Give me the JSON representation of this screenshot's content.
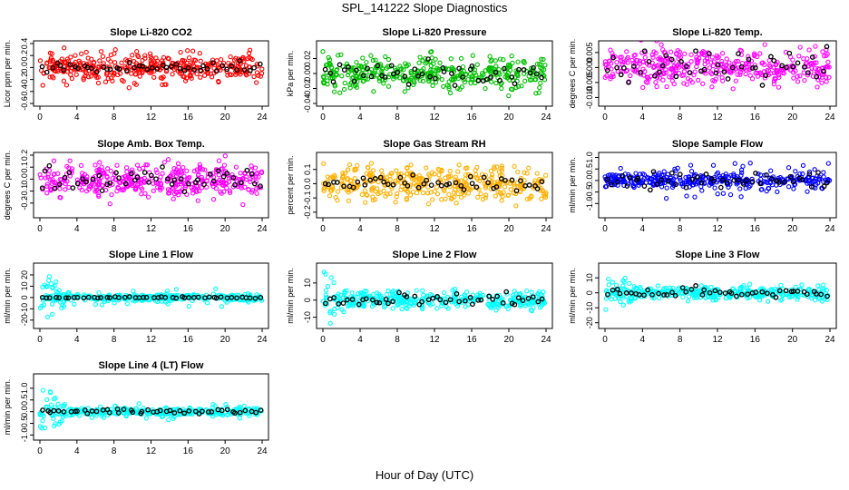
{
  "title": "SPL_141222  Slope Diagnostics",
  "xlabel": "Hour of Day (UTC)",
  "colors": {
    "red": "#ff0000",
    "green": "#00c000",
    "magenta": "#ff00ff",
    "orange": "#ffb000",
    "blue": "#0000ff",
    "cyan": "#00ffff",
    "black": "#000000"
  },
  "chart_data": [
    {
      "type": "scatter",
      "title": "Slope Li-820 CO2",
      "ylabel": "Licor ppm per min.",
      "color": "red",
      "ylim": [
        -0.6,
        0.4
      ],
      "yticks": [
        -0.6,
        -0.4,
        -0.2,
        0.0,
        0.2,
        0.4
      ],
      "ytick_labels": [
        "-0.6",
        "-0.4",
        "-0.2",
        "0.0",
        "0.2",
        "0.4"
      ],
      "xlim": [
        0,
        24
      ],
      "xticks": [
        0,
        4,
        8,
        12,
        16,
        20,
        24
      ],
      "spread": 0.1,
      "black_spread": 0.05,
      "noise": [
        0.15,
        0.3
      ]
    },
    {
      "type": "scatter",
      "title": "Slope Li-820 Pressure",
      "ylabel": "kPa per min.",
      "color": "green",
      "ylim": [
        -0.04,
        0.04
      ],
      "yticks": [
        -0.04,
        -0.02,
        0.0,
        0.02
      ],
      "ytick_labels": [
        "-0.04",
        "-0.02",
        "0.00",
        "0.02"
      ],
      "xlim": [
        0,
        24
      ],
      "xticks": [
        0,
        4,
        8,
        12,
        16,
        20,
        24
      ],
      "spread": 0.01,
      "black_spread": 0.007,
      "noise": [
        0.15,
        0.03
      ]
    },
    {
      "type": "scatter",
      "title": "Slope Li-820 Temp.",
      "ylabel": "degrees C per min.",
      "color": "magenta",
      "ylim": [
        -0.012,
        0.008
      ],
      "yticks": [
        -0.01,
        -0.005,
        0.0,
        0.005
      ],
      "ytick_labels": [
        "-0.010",
        "-0.005",
        "0.000",
        "0.005"
      ],
      "xlim": [
        0,
        24
      ],
      "xticks": [
        0,
        4,
        8,
        12,
        16,
        20,
        24
      ],
      "spread": 0.003,
      "black_spread": 0.003,
      "noise": [
        0.2,
        0.006
      ]
    },
    {
      "type": "scatter",
      "title": "Slope Amb. Box Temp.",
      "ylabel": "degrees C per min.",
      "color": "magenta",
      "ylim": [
        -0.3,
        0.2
      ],
      "yticks": [
        -0.2,
        -0.1,
        0.0,
        0.1,
        0.2
      ],
      "ytick_labels": [
        "-0.2",
        "-0.1",
        "0.0",
        "0.1",
        "0.2"
      ],
      "xlim": [
        0,
        24
      ],
      "xticks": [
        0,
        4,
        8,
        12,
        16,
        20,
        24
      ],
      "spread": 0.07,
      "black_spread": 0.05,
      "noise": [
        0.15,
        0.12
      ]
    },
    {
      "type": "scatter",
      "title": "Slope Gas Stream RH",
      "ylabel": "percent per min.",
      "color": "orange",
      "ylim": [
        -0.22,
        0.2
      ],
      "yticks": [
        -0.2,
        -0.1,
        0.0,
        0.1
      ],
      "ytick_labels": [
        "-0.2",
        "-0.1",
        "0.0",
        "0.1"
      ],
      "xlim": [
        0,
        24
      ],
      "xticks": [
        0,
        4,
        8,
        12,
        16,
        20,
        24
      ],
      "spread": 0.06,
      "black_spread": 0.03,
      "noise": [
        0.15,
        0.12
      ]
    },
    {
      "type": "scatter",
      "title": "Slope Sample Flow",
      "ylabel": "ml/min per min.",
      "color": "blue",
      "ylim": [
        -1.5,
        1.1
      ],
      "yticks": [
        -1.0,
        -0.5,
        0.0,
        0.5,
        1.0
      ],
      "ytick_labels": [
        "-1.0",
        "-0.5",
        "0.0",
        "0.5",
        "1.0"
      ],
      "xlim": [
        0,
        24
      ],
      "xticks": [
        0,
        4,
        8,
        12,
        16,
        20,
        24
      ],
      "spread": 0.15,
      "black_spread": 0.15,
      "noise": [
        0.15,
        0.8
      ]
    },
    {
      "type": "scatter",
      "title": "Slope Line 1 Flow",
      "ylabel": "ml/min per min.",
      "color": "cyan",
      "ylim": [
        -25,
        28
      ],
      "yticks": [
        -20,
        -10,
        0,
        10,
        20
      ],
      "ytick_labels": [
        "-20",
        "-10",
        "0",
        "10",
        "20"
      ],
      "xlim": [
        0,
        24
      ],
      "xticks": [
        0,
        4,
        8,
        12,
        16,
        20,
        24
      ],
      "spread": 1.5,
      "black_spread": 0.3,
      "noise": [
        0.08,
        8
      ],
      "early_burst": 25
    },
    {
      "type": "scatter",
      "title": "Slope Line 2 Flow",
      "ylabel": "ml/min per min.",
      "color": "cyan",
      "ylim": [
        -15,
        20
      ],
      "yticks": [
        -10,
        0,
        10
      ],
      "ytick_labels": [
        "-10",
        "0",
        "10"
      ],
      "xlim": [
        0,
        24
      ],
      "xticks": [
        0,
        4,
        8,
        12,
        16,
        20,
        24
      ],
      "spread": 2.5,
      "black_spread": 2.0,
      "noise": [
        0.08,
        6
      ],
      "early_burst": 18
    },
    {
      "type": "scatter",
      "title": "Slope Line 3 Flow",
      "ylabel": "ml/min per min.",
      "color": "cyan",
      "ylim": [
        -22,
        18
      ],
      "yticks": [
        -20,
        -10,
        0,
        10
      ],
      "ytick_labels": [
        "-20",
        "-10",
        "0",
        "10"
      ],
      "xlim": [
        0,
        24
      ],
      "xticks": [
        0,
        4,
        8,
        12,
        16,
        20,
        24
      ],
      "spread": 2.0,
      "black_spread": 1.5,
      "noise": [
        0.08,
        6
      ],
      "early_burst": 22
    },
    {
      "type": "scatter",
      "title": "Slope Line 4 (LT) Flow",
      "ylabel": "ml/min per min.",
      "color": "cyan",
      "ylim": [
        -1.1,
        1.5
      ],
      "yticks": [
        -1.0,
        -0.5,
        0.0,
        0.5,
        1.0
      ],
      "ytick_labels": [
        "-1.0",
        "-0.5",
        "0.0",
        "0.5",
        "1.0"
      ],
      "xlim": [
        0,
        24
      ],
      "xticks": [
        0,
        4,
        8,
        12,
        16,
        20,
        24
      ],
      "spread": 0.08,
      "black_spread": 0.05,
      "noise": [
        0.08,
        0.4
      ],
      "early_burst": 1.2
    }
  ]
}
